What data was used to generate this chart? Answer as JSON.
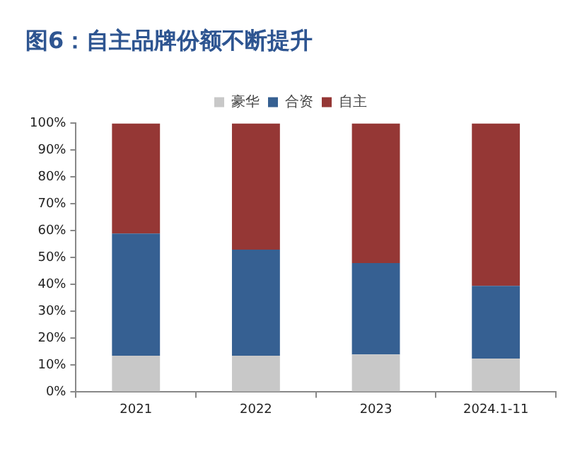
{
  "chart_data": {
    "type": "bar",
    "title": "图6：自主品牌份额不断提升",
    "categories": [
      "2021",
      "2022",
      "2023",
      "2024.1-11"
    ],
    "stacked": true,
    "legend": "top",
    "series": [
      {
        "name": "豪华",
        "color": "#c8c8c8",
        "values": [
          13.5,
          13.5,
          14,
          12.5
        ]
      },
      {
        "name": "合资",
        "color": "#366092",
        "values": [
          45.5,
          39.5,
          34,
          27
        ]
      },
      {
        "name": "自主",
        "color": "#953735",
        "values": [
          41,
          47,
          52,
          60.5
        ]
      }
    ],
    "ylim": [
      0,
      100
    ],
    "yticks": [
      {
        "value": 0,
        "label": "0%"
      },
      {
        "value": 10,
        "label": "10%"
      },
      {
        "value": 20,
        "label": "20%"
      },
      {
        "value": 30,
        "label": "30%"
      },
      {
        "value": 40,
        "label": "40%"
      },
      {
        "value": 50,
        "label": "50%"
      },
      {
        "value": 60,
        "label": "60%"
      },
      {
        "value": 70,
        "label": "70%"
      },
      {
        "value": 80,
        "label": "80%"
      },
      {
        "value": 90,
        "label": "90%"
      },
      {
        "value": 100,
        "label": "100%"
      }
    ]
  }
}
